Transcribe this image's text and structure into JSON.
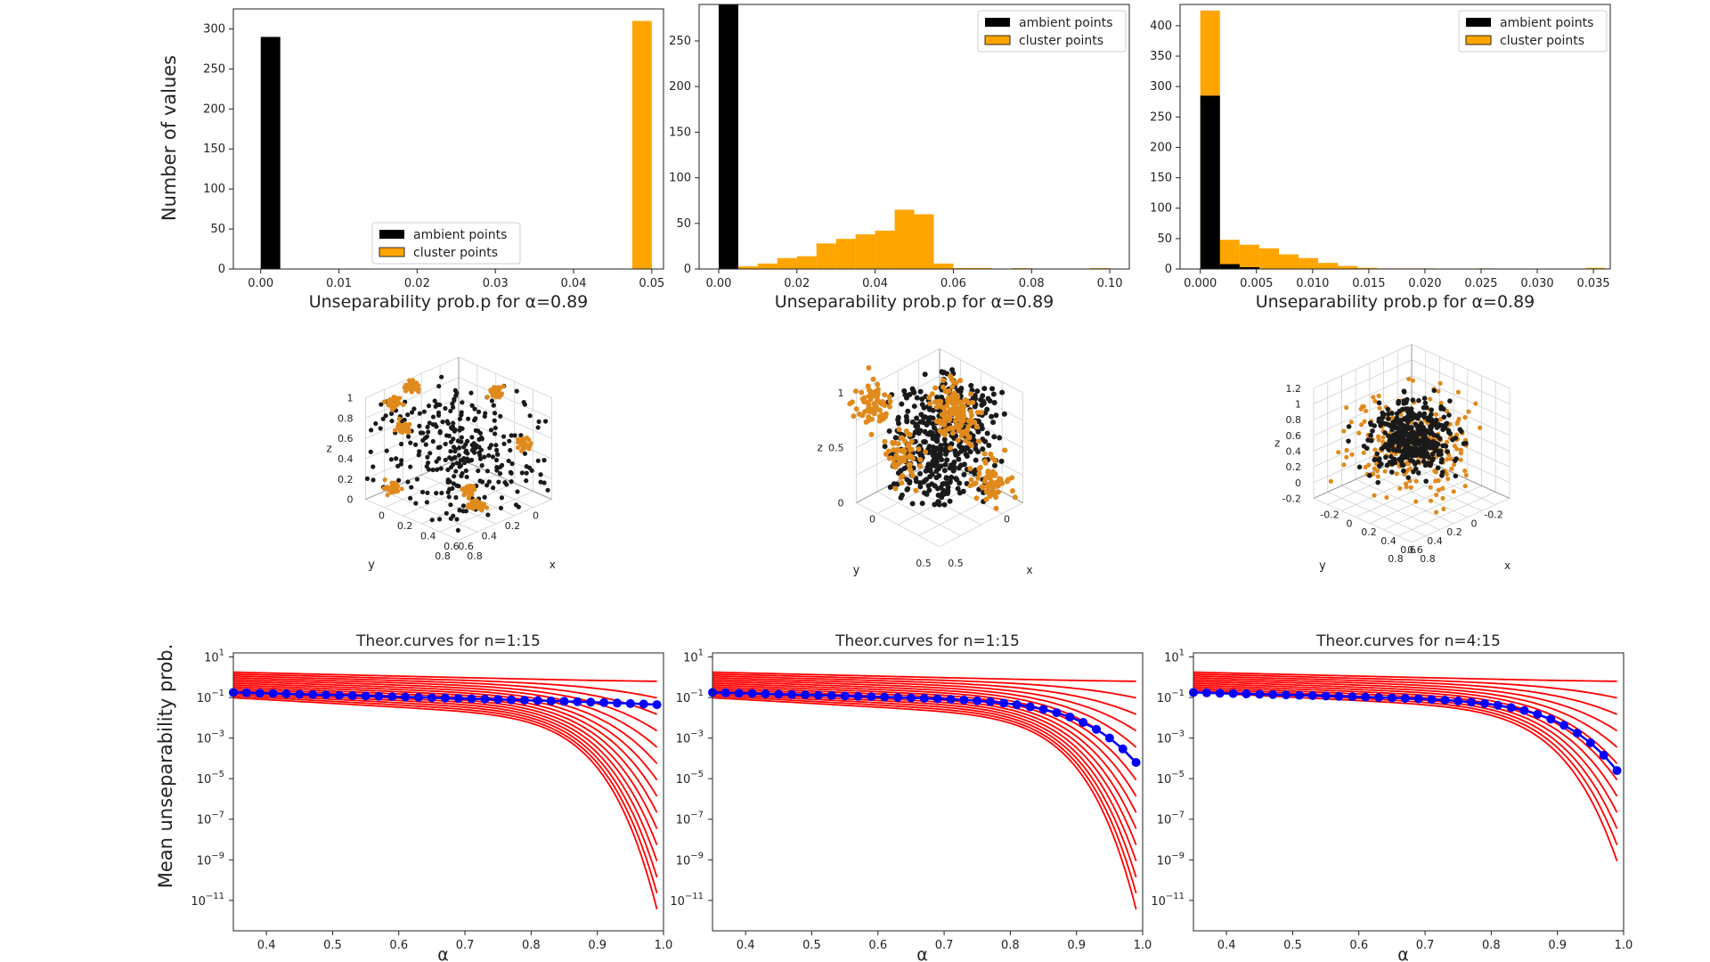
{
  "colors": {
    "ambient": "#000000",
    "cluster": "#FFA500",
    "theory": "#FF0000",
    "empirical": "#0000FF",
    "cluster_dot": "#E08A1C",
    "ambient_dot": "#1a1a1a"
  },
  "figure": {
    "hist_ylabel": "Number of values",
    "curves_ylabel": "Mean unseparability prob.",
    "legend": {
      "ambient": "ambient points",
      "cluster": "cluster points"
    },
    "hist_xlabel": "Unseparability prob.p for α=0.89",
    "curves_xlabel": "α"
  },
  "chart_data": [
    {
      "type": "bar",
      "id": "hist1",
      "legend_loc": "lower-center",
      "xlabel": "Unseparability prob.p for α=0.89",
      "ylabel": "Number of values",
      "xlim": [
        -0.0035,
        0.0515
      ],
      "ylim": [
        0,
        325
      ],
      "xticks": [
        0,
        0.01,
        0.02,
        0.03,
        0.04,
        0.05
      ],
      "xtick_labels": [
        "0.00",
        "0.01",
        "0.02",
        "0.03",
        "0.04",
        "0.05"
      ],
      "yticks": [
        0,
        50,
        100,
        150,
        200,
        250,
        300
      ],
      "ytick_labels": [
        "0",
        "50",
        "100",
        "150",
        "200",
        "250",
        "300"
      ],
      "series": [
        {
          "name": "ambient points",
          "bins": [
            [
              0,
              0.0025,
              290
            ]
          ]
        },
        {
          "name": "cluster points",
          "bins": [
            [
              0.0475,
              0.05,
              310
            ]
          ]
        }
      ]
    },
    {
      "type": "bar",
      "id": "hist2",
      "legend_loc": "top-right",
      "xlabel": "Unseparability prob.p for α=0.89",
      "ylabel": "",
      "xlim": [
        -0.005,
        0.105
      ],
      "ylim": [
        0,
        290
      ],
      "xticks": [
        0,
        0.02,
        0.04,
        0.06,
        0.08,
        0.1
      ],
      "xtick_labels": [
        "0.00",
        "0.02",
        "0.04",
        "0.06",
        "0.08",
        "0.10"
      ],
      "yticks": [
        0,
        50,
        100,
        150,
        200,
        250
      ],
      "ytick_labels": [
        "0",
        "50",
        "100",
        "150",
        "200",
        "250"
      ],
      "series": [
        {
          "name": "ambient points",
          "bins": [
            [
              0,
              0.005,
              290
            ]
          ]
        },
        {
          "name": "cluster points",
          "bins": [
            [
              0.005,
              0.01,
              3
            ],
            [
              0.01,
              0.015,
              6
            ],
            [
              0.015,
              0.02,
              12
            ],
            [
              0.02,
              0.025,
              14
            ],
            [
              0.025,
              0.03,
              28
            ],
            [
              0.03,
              0.035,
              33
            ],
            [
              0.035,
              0.04,
              38
            ],
            [
              0.04,
              0.045,
              42
            ],
            [
              0.045,
              0.05,
              65
            ],
            [
              0.05,
              0.055,
              60
            ],
            [
              0.055,
              0.06,
              6
            ],
            [
              0.06,
              0.065,
              1
            ],
            [
              0.065,
              0.07,
              1
            ],
            [
              0.075,
              0.08,
              1
            ],
            [
              0.095,
              0.1,
              1
            ]
          ]
        }
      ]
    },
    {
      "type": "bar",
      "id": "hist3",
      "legend_loc": "top-right",
      "xlabel": "Unseparability prob.p for α=0.89",
      "ylabel": "",
      "xlim": [
        -0.0018,
        0.0365
      ],
      "ylim": [
        0,
        435
      ],
      "xticks": [
        0,
        0.005,
        0.01,
        0.015,
        0.02,
        0.025,
        0.03,
        0.035
      ],
      "xtick_labels": [
        "0.000",
        "0.005",
        "0.010",
        "0.015",
        "0.020",
        "0.025",
        "0.030",
        "0.035"
      ],
      "yticks": [
        0,
        50,
        100,
        150,
        200,
        250,
        300,
        350,
        400
      ],
      "ytick_labels": [
        "0",
        "50",
        "100",
        "150",
        "200",
        "250",
        "300",
        "350",
        "400"
      ],
      "series": [
        {
          "name": "ambient points",
          "bins": [
            [
              0,
              0.00175,
              285
            ],
            [
              0.00175,
              0.0035,
              8
            ],
            [
              0.0035,
              0.00525,
              3
            ]
          ]
        },
        {
          "name": "cluster points",
          "bins": [
            [
              0,
              0.00175,
              425
            ],
            [
              0.00175,
              0.0035,
              48
            ],
            [
              0.0035,
              0.00525,
              40
            ],
            [
              0.00525,
              0.007,
              34
            ],
            [
              0.007,
              0.00875,
              24
            ],
            [
              0.00875,
              0.0105,
              18
            ],
            [
              0.0105,
              0.01225,
              10
            ],
            [
              0.01225,
              0.014,
              5
            ],
            [
              0.014,
              0.01575,
              2
            ],
            [
              0.01575,
              0.0175,
              1
            ],
            [
              0.0175,
              0.01925,
              1
            ],
            [
              0.01925,
              0.021,
              1
            ],
            [
              0.0245,
              0.02625,
              1
            ],
            [
              0.0343,
              0.036,
              2
            ]
          ]
        }
      ]
    },
    {
      "type": "line",
      "id": "curves1",
      "title": "Theor.curves for n=1:15",
      "xlabel": "α",
      "ylabel": "Mean unseparability prob.",
      "yscale": "log",
      "xlim": [
        0.35,
        1.0
      ],
      "ylim_exp": [
        -12.5,
        1.2
      ],
      "xticks": [
        0.4,
        0.5,
        0.6,
        0.7,
        0.8,
        0.9,
        1.0
      ],
      "xtick_labels": [
        "0.4",
        "0.5",
        "0.6",
        "0.7",
        "0.8",
        "0.9",
        "1.0"
      ],
      "ytick_exps": [
        1,
        -1,
        -3,
        -5,
        -7,
        -9,
        -11
      ],
      "theory_curve_count": 15,
      "empirical_end_exp": -1.35
    },
    {
      "type": "line",
      "id": "curves2",
      "title": "Theor.curves for n=1:15",
      "xlabel": "α",
      "ylabel": "",
      "yscale": "log",
      "xlim": [
        0.35,
        1.0
      ],
      "ylim_exp": [
        -12.5,
        1.2
      ],
      "xticks": [
        0.4,
        0.5,
        0.6,
        0.7,
        0.8,
        0.9,
        1.0
      ],
      "xtick_labels": [
        "0.4",
        "0.5",
        "0.6",
        "0.7",
        "0.8",
        "0.9",
        "1.0"
      ],
      "ytick_exps": [
        1,
        -1,
        -3,
        -5,
        -7,
        -9,
        -11
      ],
      "theory_curve_count": 15,
      "empirical_end_exp": -4.2
    },
    {
      "type": "line",
      "id": "curves3",
      "title": "Theor.curves for n=4:15",
      "xlabel": "α",
      "ylabel": "",
      "yscale": "log",
      "xlim": [
        0.35,
        1.0
      ],
      "ylim_exp": [
        -12.5,
        1.2
      ],
      "xticks": [
        0.4,
        0.5,
        0.6,
        0.7,
        0.8,
        0.9,
        1.0
      ],
      "xtick_labels": [
        "0.4",
        "0.5",
        "0.6",
        "0.7",
        "0.8",
        "0.9",
        "1.0"
      ],
      "ytick_exps": [
        1,
        -1,
        -3,
        -5,
        -7,
        -9,
        -11
      ],
      "theory_curve_count": 12,
      "empirical_end_exp": -4.6
    },
    {
      "type": "scatter",
      "id": "scatter1",
      "projection": "3d",
      "axis_labels": {
        "x": "x",
        "y": "y",
        "z": "z"
      },
      "z_ticks": [
        "1",
        "0.8",
        "0.6",
        "0.4",
        "0.2",
        "0"
      ],
      "y_ticks": [
        "0",
        "0.2",
        "0.4",
        "0.6",
        "0.8"
      ],
      "x_ticks": [
        "0",
        "0.2",
        "0.4",
        "0.6",
        "0.8"
      ],
      "ambient_points": 300,
      "cluster_count": 8,
      "cluster_points_each": 40
    },
    {
      "type": "scatter",
      "id": "scatter2",
      "projection": "3d",
      "axis_labels": {
        "x": "x",
        "y": "y",
        "z": "z"
      },
      "z_ticks": [
        "1",
        "0.5",
        "0"
      ],
      "y_ticks": [
        "0",
        "0.5"
      ],
      "x_ticks": [
        "0",
        "0.5"
      ],
      "ambient_points": 420,
      "cluster_points": 330
    },
    {
      "type": "scatter",
      "id": "scatter3",
      "projection": "3d",
      "axis_labels": {
        "x": "x",
        "y": "y",
        "z": "z"
      },
      "z_ticks": [
        "1.2",
        "1",
        "0.8",
        "0.6",
        "0.4",
        "0.2",
        "0",
        "-0.2"
      ],
      "y_ticks": [
        "-0.2",
        "0",
        "0.2",
        "0.4",
        "0.6",
        "0.8"
      ],
      "x_ticks": [
        "-0.2",
        "0",
        "0.2",
        "0.4",
        "0.6",
        "0.8"
      ],
      "ambient_points": 380,
      "cluster_points": 280
    }
  ]
}
